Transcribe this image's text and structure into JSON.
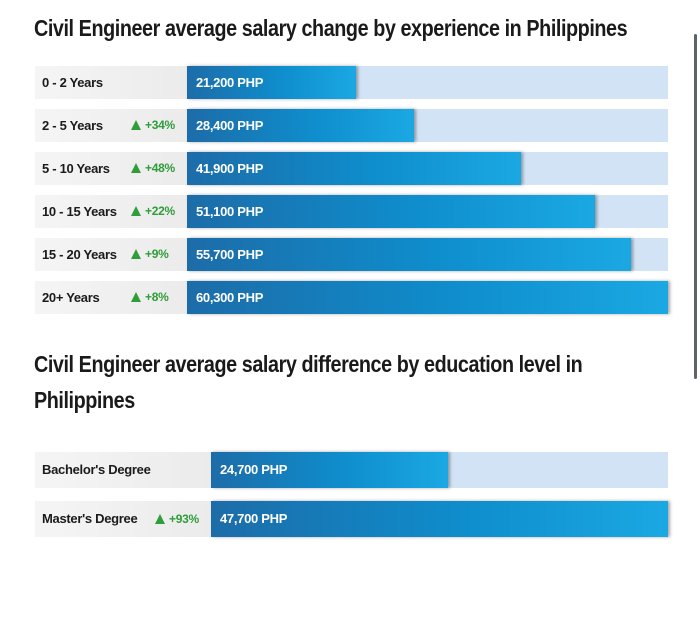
{
  "colors": {
    "bar_gradient_start": "#1c6ca8",
    "bar_gradient_end": "#1aa8e3",
    "track": "#d3e3f6",
    "label_background": "#f0f0f0",
    "increase": "#2e9d3a"
  },
  "chart_data": [
    {
      "type": "bar",
      "orientation": "horizontal",
      "title": "Civil Engineer average salary change by experience in Philippines",
      "categories": [
        "0 - 2 Years",
        "2 - 5 Years",
        "5 - 10 Years",
        "10 - 15 Years",
        "15 - 20 Years",
        "20+ Years"
      ],
      "values": [
        21200,
        28400,
        41900,
        51100,
        55700,
        60300
      ],
      "value_labels": [
        "21,200 PHP",
        "28,400 PHP",
        "41,900 PHP",
        "51,100 PHP",
        "55,700 PHP",
        "60,300 PHP"
      ],
      "changes": [
        "",
        "+34%",
        "+48%",
        "+22%",
        "+9%",
        "+8%"
      ],
      "change_icon": "triangle-up-icon",
      "unit": "PHP",
      "xlim": [
        0,
        60300
      ],
      "grid": false,
      "legend": "none"
    },
    {
      "type": "bar",
      "orientation": "horizontal",
      "title_lines": [
        "Civil Engineer average salary difference by education level in",
        "Philippines"
      ],
      "categories": [
        "Bachelor's Degree",
        "Master's Degree"
      ],
      "values": [
        24700,
        47700
      ],
      "value_labels": [
        "24,700 PHP",
        "47,700 PHP"
      ],
      "changes": [
        "",
        "+93%"
      ],
      "change_icon": "triangle-up-icon",
      "unit": "PHP",
      "xlim": [
        0,
        47700
      ],
      "grid": false,
      "legend": "none"
    }
  ]
}
